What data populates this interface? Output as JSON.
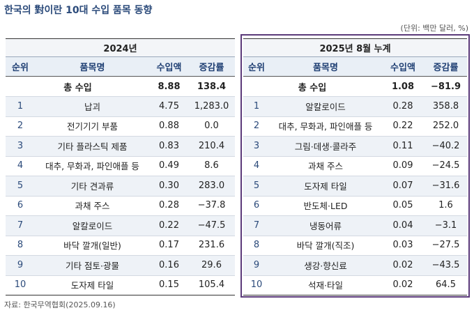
{
  "title": "한국의 對이란 10대 수입 품목 동향",
  "unit": "(단위: 백만 달러, %)",
  "tables": [
    {
      "period": "2024년",
      "columns": [
        "순위",
        "품목명",
        "수입액",
        "증감률"
      ],
      "total": [
        "총 수입",
        "8.88",
        "138.4"
      ],
      "rows": [
        [
          "1",
          "납괴",
          "4.75",
          "1,283.0"
        ],
        [
          "2",
          "전기기기 부품",
          "0.88",
          "0.0"
        ],
        [
          "3",
          "기타 플라스틱 제품",
          "0.83",
          "210.4"
        ],
        [
          "4",
          "대추, 무화과, 파인애플 등",
          "0.49",
          "8.6"
        ],
        [
          "5",
          "기타 견과류",
          "0.30",
          "283.0"
        ],
        [
          "6",
          "과채 주스",
          "0.28",
          "−37.8"
        ],
        [
          "7",
          "알칼로이드",
          "0.22",
          "−47.5"
        ],
        [
          "8",
          "바닥 깔개(일반)",
          "0.17",
          "231.6"
        ],
        [
          "9",
          "기타 점토·광물",
          "0.16",
          "29.6"
        ],
        [
          "10",
          "도자제 타일",
          "0.15",
          "105.4"
        ]
      ]
    },
    {
      "period": "2025년 8월 누계",
      "columns": [
        "순위",
        "품목명",
        "수입액",
        "증감률"
      ],
      "total": [
        "총 수입",
        "1.08",
        "−81.9"
      ],
      "rows": [
        [
          "1",
          "알칼로이드",
          "0.28",
          "358.8"
        ],
        [
          "2",
          "대추, 무화과, 파인애플 등",
          "0.22",
          "252.0"
        ],
        [
          "3",
          "그림·데생·콜라주",
          "0.11",
          "−40.2"
        ],
        [
          "4",
          "과채 주스",
          "0.09",
          "−24.5"
        ],
        [
          "5",
          "도자제 타일",
          "0.07",
          "−31.6"
        ],
        [
          "6",
          "반도체·LED",
          "0.05",
          "1.6"
        ],
        [
          "7",
          "냉동어류",
          "0.04",
          "−3.1"
        ],
        [
          "8",
          "바닥 깔개(직조)",
          "0.03",
          "−27.5"
        ],
        [
          "9",
          "생강·향신료",
          "0.02",
          "−43.5"
        ],
        [
          "10",
          "석재·타일",
          "0.02",
          "64.5"
        ]
      ]
    }
  ],
  "source": "자료: 한국무역협회(2025.09.16)"
}
